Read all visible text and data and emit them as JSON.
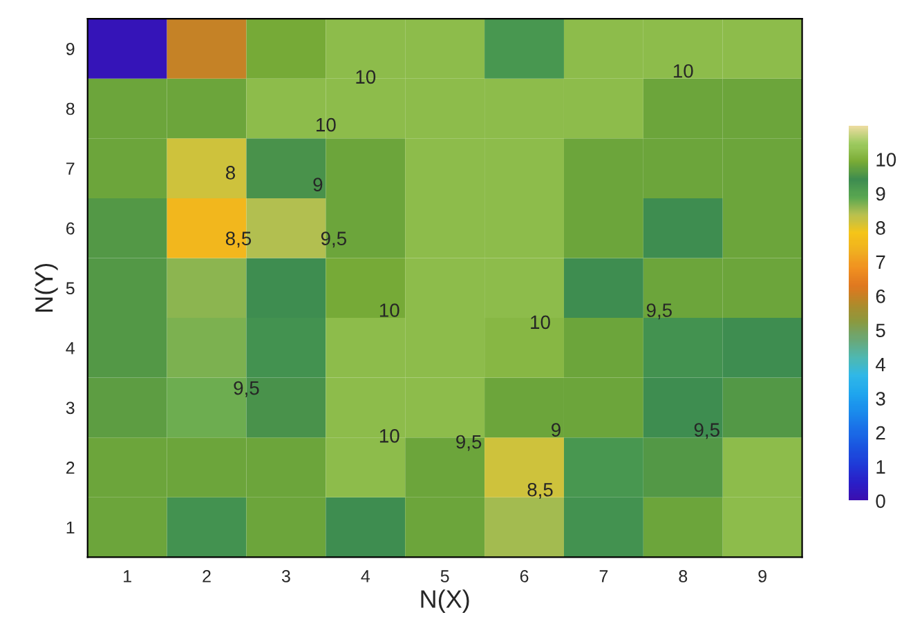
{
  "chart_data": {
    "type": "heatmap",
    "xlabel": "N(X)",
    "ylabel": "N(Y)",
    "categories": [
      "1",
      "2",
      "3",
      "4",
      "5",
      "6",
      "7",
      "8",
      "9"
    ],
    "y_categories": [
      "9",
      "8",
      "7",
      "6",
      "5",
      "4",
      "3",
      "2",
      "1"
    ],
    "cells": [
      [
        0.2,
        6,
        9.9,
        10.2,
        10.2,
        9.2,
        10.2,
        10.2,
        10.2
      ],
      [
        9.8,
        9.8,
        10.2,
        10.2,
        10.2,
        10.2,
        10.2,
        9.8,
        9.8
      ],
      [
        9.8,
        8.2,
        9.5,
        9.8,
        10.2,
        10.2,
        9.8,
        9.8,
        9.8
      ],
      [
        9.6,
        7.5,
        8.4,
        9.8,
        10.2,
        10.2,
        9.8,
        9.4,
        9.8
      ],
      [
        9.6,
        8.6,
        9.4,
        9.9,
        10.2,
        10.2,
        9.4,
        9.8,
        9.8
      ],
      [
        9.6,
        8.7,
        9.3,
        10.2,
        10.2,
        10.1,
        9.8,
        9.3,
        9.4
      ],
      [
        9.7,
        8.8,
        9.5,
        10.2,
        10.2,
        9.8,
        9.8,
        9.4,
        9.6
      ],
      [
        9.8,
        9.8,
        9.8,
        10.2,
        9.8,
        8.2,
        9.2,
        9.6,
        10.2
      ],
      [
        9.8,
        9.3,
        9.8,
        9.4,
        9.8,
        8.5,
        9.3,
        9.8,
        10.2
      ]
    ],
    "colors": [
      "#3b0fb0",
      "#2a1fc8",
      "#1f3ad8",
      "#1a55e0",
      "#1a70e8",
      "#1a8cec",
      "#1fa6ee",
      "#30b8e8",
      "#4fb8b0",
      "#6aa878",
      "#8a9a40",
      "#b08a2a",
      "#e07820",
      "#f09020",
      "#f0b020",
      "#f5c518",
      "#b8c050",
      "#5aa850",
      "#3d8c50",
      "#7aac35",
      "#9ecb60",
      "#ecdca0"
    ],
    "clim": [
      0,
      11
    ],
    "cticks": [
      0,
      1,
      2,
      3,
      4,
      5,
      6,
      7,
      8,
      9,
      10
    ],
    "annotations": [
      "10",
      "10",
      "10",
      "8",
      "9",
      "9,5",
      "8,5",
      "10",
      "10",
      "9,5",
      "9,5",
      "9",
      "9,5",
      "10",
      "9,5",
      "8,5"
    ]
  }
}
